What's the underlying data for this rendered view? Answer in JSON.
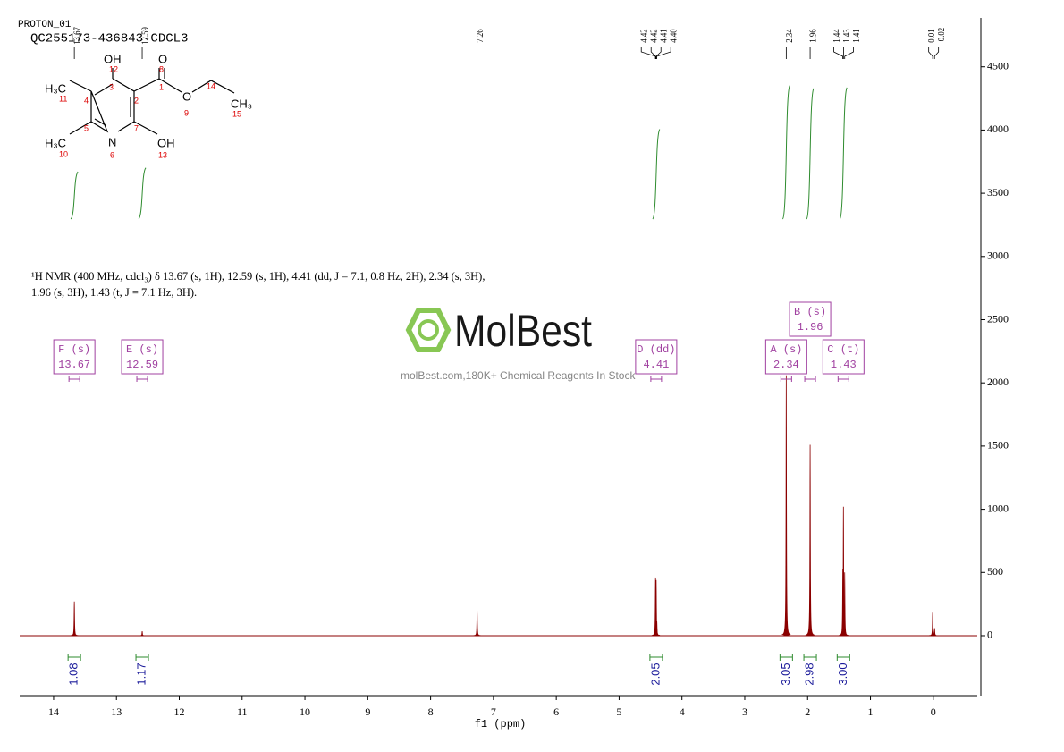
{
  "chart_data": {
    "type": "nmr",
    "title": "PROTON_01",
    "subtitle": "QC255173-436843-CDCL3",
    "annotation": [
      "¹H NMR (400 MHz, cdcl₃) δ 13.67 (s, 1H), 12.59 (s, 1H), 4.41 (dd, J = 7.1, 0.8 Hz, 2H), 2.34 (s, 3H),",
      "1.96 (s, 3H), 1.43 (t, J = 7.1 Hz, 3H)."
    ],
    "x_label": "f1 (ppm)",
    "xlim": [
      14.54,
      -0.7
    ],
    "xticks": [
      14,
      13,
      12,
      11,
      10,
      9,
      8,
      7,
      6,
      5,
      4,
      3,
      2,
      1,
      0
    ],
    "ylim": [
      -474,
      4887
    ],
    "yticks": [
      0,
      500,
      1000,
      1500,
      2000,
      2500,
      3000,
      3500,
      4000,
      4500
    ],
    "color": "#8b0000",
    "peaks": {
      "x": [
        13.67,
        12.59,
        7.26,
        4.42,
        4.42,
        4.41,
        4.4,
        2.34,
        1.96,
        1.44,
        1.43,
        1.41,
        0.01,
        -0.02
      ],
      "x_labels": [
        "13.67",
        "12.59",
        "7.26",
        "4.42",
        "4.42",
        "4.41",
        "4.40",
        "2.34",
        "1.96",
        "1.44",
        "1.43",
        "1.41",
        "0.01",
        "-0.02"
      ],
      "values": [
        270,
        35,
        200,
        460,
        130,
        440,
        120,
        2060,
        1510,
        530,
        1020,
        500,
        190,
        60
      ]
    },
    "multiplets": {
      "names": [
        "F (s)",
        "E (s)",
        "D (dd)",
        "A (s)",
        "B (s)",
        "C (t)"
      ],
      "shifts": [
        13.67,
        12.59,
        4.41,
        2.34,
        1.96,
        1.43
      ],
      "integrals": [
        1.08,
        1.17,
        2.05,
        3.05,
        2.98,
        3
      ],
      "integral_labels": [
        "1.08",
        "1.17",
        "2.05",
        "3.05",
        "2.98",
        "3.00"
      ]
    }
  },
  "structure": {
    "labels": [
      "OH",
      "12",
      "O",
      "8",
      "H₃C",
      "11",
      "4",
      "3",
      "2",
      "1",
      "O",
      "9",
      "14",
      "CH₃",
      "15",
      "5",
      "7",
      "N",
      "6",
      "OH",
      "13",
      "H₃C",
      "10"
    ]
  },
  "watermark": {
    "brand": "MolBest",
    "tagline": "molBest.com,180K+ Chemical Reagents In Stock"
  }
}
